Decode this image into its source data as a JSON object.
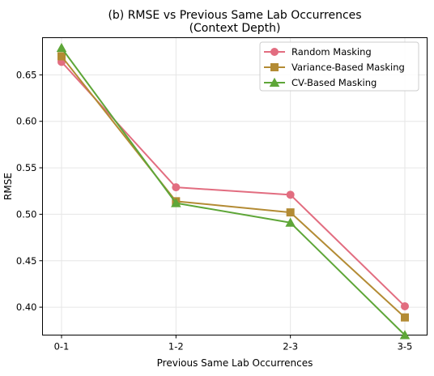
{
  "chart_data": {
    "type": "line",
    "title": "(b) RMSE vs Previous Same Lab Occurrences",
    "subtitle": "(Context Depth)",
    "xlabel": "Previous Same Lab Occurrences",
    "ylabel": "RMSE",
    "categories": [
      "0-1",
      "1-2",
      "2-3",
      "3-5"
    ],
    "ylim": [
      0.37,
      0.69
    ],
    "yticks": [
      "0.40",
      "0.45",
      "0.50",
      "0.55",
      "0.60",
      "0.65"
    ],
    "grid": true,
    "legend_position": "top-right",
    "series": [
      {
        "name": "Random Masking",
        "values": [
          0.664,
          0.529,
          0.521,
          0.401
        ],
        "color": "#e26d80",
        "marker": "circle"
      },
      {
        "name": "Variance-Based Masking",
        "values": [
          0.67,
          0.514,
          0.502,
          0.389
        ],
        "color": "#b38b34",
        "marker": "square"
      },
      {
        "name": "CV-Based Masking",
        "values": [
          0.679,
          0.512,
          0.491,
          0.37
        ],
        "color": "#5ea638",
        "marker": "triangle"
      }
    ]
  }
}
